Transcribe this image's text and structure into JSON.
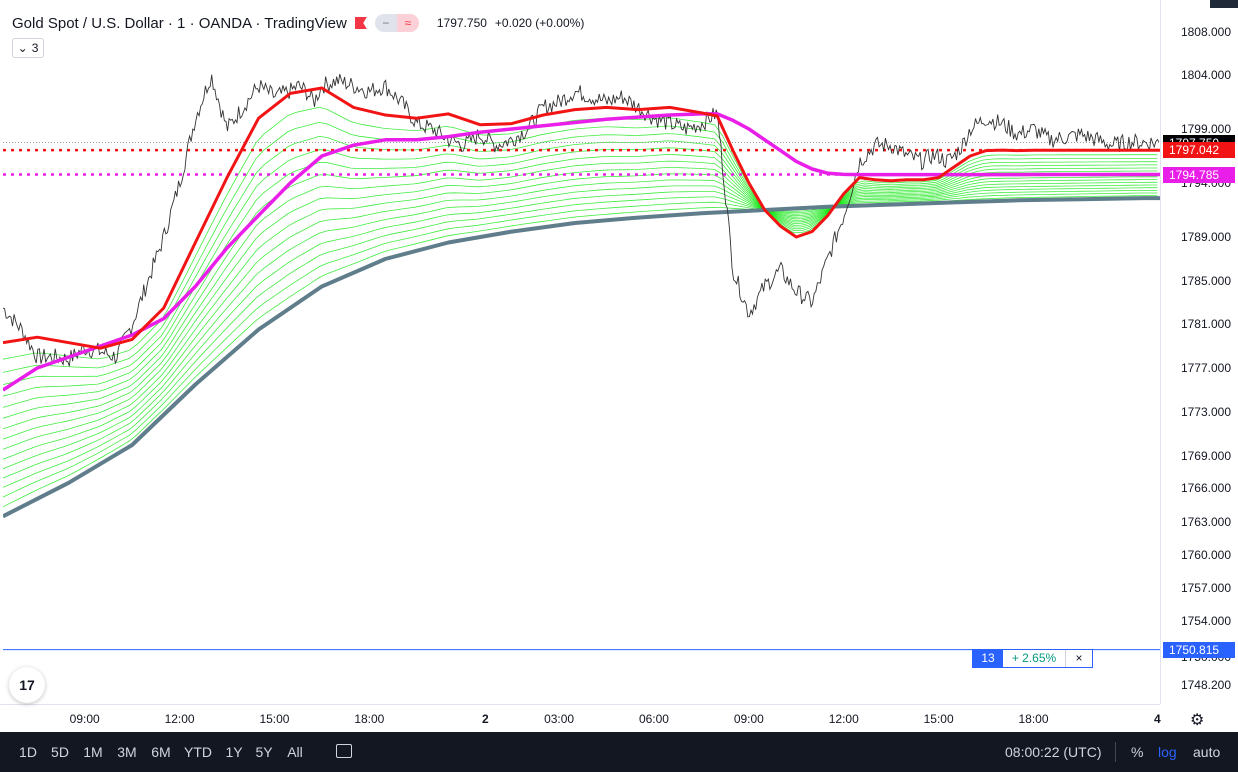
{
  "header": {
    "symbol_title": "Gold Spot / U.S. Dollar · 1 · OANDA · TradingView",
    "last_price": "1797.750",
    "change": "+0.020 (+0.00%)",
    "indicator_count": "3",
    "eq_icon": "≈",
    "minus_icon": "−"
  },
  "price_axis": {
    "ticks": [
      "1808.000",
      "1804.000",
      "1799.000",
      "1794.000",
      "1789.000",
      "1785.000",
      "1781.000",
      "1777.000",
      "1773.000",
      "1769.000",
      "1766.000",
      "1763.000",
      "1760.000",
      "1757.000",
      "1754.000",
      "1750.000",
      "1748.200"
    ],
    "labels": [
      {
        "text": "1797.750",
        "color": "#000000"
      },
      {
        "text": "1797.042",
        "color": "#f21414"
      },
      {
        "text": "1794.785",
        "color": "#e91ee9"
      },
      {
        "text": "1750.815",
        "color": "#2962ff"
      }
    ]
  },
  "time_axis": {
    "ticks": [
      "09:00",
      "12:00",
      "15:00",
      "18:00",
      "2",
      "03:00",
      "06:00",
      "09:00",
      "12:00",
      "15:00",
      "18:00",
      "4"
    ],
    "bold": [
      "2",
      "4"
    ]
  },
  "measure_box": {
    "bars": "13",
    "change": "+ 2.65%",
    "close": "×"
  },
  "bottom_bar": {
    "ranges": [
      "1D",
      "5D",
      "1M",
      "3M",
      "6M",
      "YTD",
      "1Y",
      "5Y",
      "All"
    ],
    "clock": "08:00:22 (UTC)",
    "percent": "%",
    "log": "log",
    "auto": "auto"
  },
  "logo_text": "17",
  "chart_data": {
    "type": "line",
    "ylim": [
      1747.5,
      1809.5
    ],
    "x_unit": "minutes since 07:00 day 1",
    "xlim": [
      -35,
      2160
    ],
    "price": {
      "name": "XAUUSD",
      "x": [
        -35,
        0,
        30,
        60,
        90,
        120,
        150,
        180,
        210,
        240,
        270,
        300,
        330,
        360,
        390,
        420,
        450,
        480,
        510,
        525,
        540,
        555,
        570,
        600,
        630,
        660,
        690,
        720,
        750,
        780,
        810,
        840,
        870,
        900,
        930,
        960,
        990,
        1020,
        1050,
        1080,
        1110,
        1140,
        1170,
        1200,
        1230,
        1260,
        1290,
        1320,
        1350,
        1380,
        1410,
        1440,
        1470,
        1500,
        1530,
        1560,
        1590,
        1620,
        1650,
        1680,
        1710,
        1725,
        1740,
        1755,
        1770,
        1785,
        1800,
        1830,
        1860,
        1890,
        1920,
        1950,
        1980,
        2010,
        2040,
        2070,
        2100,
        2130,
        2160
      ],
      "y": [
        1782.5,
        1780.5,
        1778.0,
        1778.0,
        1777.8,
        1778.8,
        1778.5,
        1778.0,
        1781.0,
        1785.0,
        1789.0,
        1794.0,
        1800.0,
        1804.0,
        1799.0,
        1801.0,
        1803.0,
        1802.0,
        1802.5,
        1803.0,
        1802.5,
        1801.5,
        1803.0,
        1803.5,
        1803.0,
        1802.5,
        1803.0,
        1801.5,
        1799.5,
        1799.0,
        1798.0,
        1797.5,
        1798.5,
        1797.5,
        1798.0,
        1799.0,
        1801.0,
        1801.5,
        1802.5,
        1802.0,
        1801.5,
        1802.0,
        1801.0,
        1800.0,
        1799.5,
        1799.0,
        1799.5,
        1800.5,
        1786.0,
        1782.0,
        1784.5,
        1786.0,
        1784.0,
        1783.0,
        1787.0,
        1791.0,
        1796.0,
        1797.5,
        1797.5,
        1796.5,
        1796.0,
        1796.5,
        1796.5,
        1796.0,
        1796.5,
        1797.5,
        1799.0,
        1800.0,
        1799.5,
        1798.5,
        1799.0,
        1798.0,
        1798.2,
        1798.5,
        1798.0,
        1797.5,
        1797.8,
        1797.75,
        1797.75
      ]
    },
    "series": [
      {
        "name": "Red EMA",
        "color": "#f21414",
        "x": [
          -35,
          30,
          90,
          150,
          210,
          270,
          330,
          390,
          450,
          510,
          570,
          630,
          690,
          750,
          810,
          870,
          930,
          990,
          1050,
          1110,
          1170,
          1230,
          1290,
          1320,
          1350,
          1380,
          1410,
          1440,
          1470,
          1500,
          1530,
          1560,
          1590,
          1620,
          1650,
          1680,
          1710,
          1740,
          1770,
          1800,
          1830,
          1860,
          1890,
          1920,
          1950,
          1980,
          2010,
          2040,
          2070,
          2100,
          2130,
          2160
        ],
        "y": [
          1779.3,
          1779.8,
          1779.3,
          1778.8,
          1779.6,
          1782.5,
          1788.5,
          1794.5,
          1800.0,
          1802.3,
          1802.8,
          1801.0,
          1800.3,
          1800.0,
          1800.4,
          1799.4,
          1799.5,
          1800.3,
          1800.8,
          1801.0,
          1800.8,
          1801.0,
          1800.5,
          1800.2,
          1797.0,
          1794.0,
          1791.5,
          1790.0,
          1789.0,
          1789.5,
          1791.0,
          1793.0,
          1794.5,
          1794.3,
          1794.2,
          1794.3,
          1794.3,
          1794.5,
          1795.5,
          1796.5,
          1797.0,
          1797.05,
          1797.0,
          1797.04,
          1797.04,
          1797.04,
          1797.04,
          1797.04,
          1797.04,
          1797.04,
          1797.04,
          1797.04
        ]
      },
      {
        "name": "Magenta EMA",
        "color": "#e91ee9",
        "x": [
          -35,
          30,
          90,
          150,
          210,
          270,
          330,
          390,
          450,
          510,
          570,
          630,
          690,
          750,
          810,
          870,
          930,
          990,
          1050,
          1110,
          1170,
          1230,
          1290,
          1320,
          1350,
          1380,
          1410,
          1440,
          1470,
          1500,
          1530,
          1560,
          1590,
          1620,
          1650,
          1680,
          1710,
          1740,
          1770,
          1800,
          1830,
          1860,
          1890,
          1920,
          1950,
          1980,
          2010,
          2040,
          2070,
          2100,
          2130,
          2160
        ],
        "y": [
          1775.0,
          1777.0,
          1778.0,
          1779.0,
          1780.0,
          1781.5,
          1784.5,
          1788.0,
          1791.0,
          1794.0,
          1796.5,
          1797.5,
          1798.0,
          1798.0,
          1798.3,
          1798.7,
          1799.0,
          1799.3,
          1799.6,
          1799.9,
          1800.1,
          1800.3,
          1800.4,
          1800.4,
          1799.8,
          1799.0,
          1798.0,
          1797.0,
          1796.0,
          1795.3,
          1794.9,
          1794.8,
          1794.78,
          1794.78,
          1794.78,
          1794.78,
          1794.78,
          1794.78,
          1794.78,
          1794.78,
          1794.78,
          1794.78,
          1794.78,
          1794.785,
          1794.785,
          1794.785,
          1794.785,
          1794.785,
          1794.785,
          1794.785,
          1794.785,
          1794.785
        ]
      },
      {
        "name": "Slow EMA",
        "color": "#607d8b",
        "x": [
          -35,
          90,
          210,
          330,
          450,
          570,
          690,
          810,
          930,
          1050,
          1170,
          1290,
          1410,
          1530,
          1650,
          1770,
          1890,
          2010,
          2130,
          2160
        ],
        "y": [
          1763.5,
          1766.5,
          1770.0,
          1775.5,
          1780.5,
          1784.5,
          1787.0,
          1788.5,
          1789.5,
          1790.3,
          1790.8,
          1791.2,
          1791.5,
          1791.8,
          1792.0,
          1792.2,
          1792.4,
          1792.5,
          1792.6,
          1792.6
        ]
      }
    ],
    "horizontal_lines": [
      {
        "value": 1797.042,
        "color": "#f21414",
        "style": "dotted"
      },
      {
        "value": 1794.785,
        "color": "#e91ee9",
        "style": "dotted"
      },
      {
        "value": 1750.815,
        "color": "#2962ff",
        "style": "solid"
      },
      {
        "value": 1797.75,
        "color": "#9598a1",
        "style": "dotted-thin"
      }
    ],
    "ribbon": {
      "count": 16,
      "color": "#00e600"
    }
  }
}
